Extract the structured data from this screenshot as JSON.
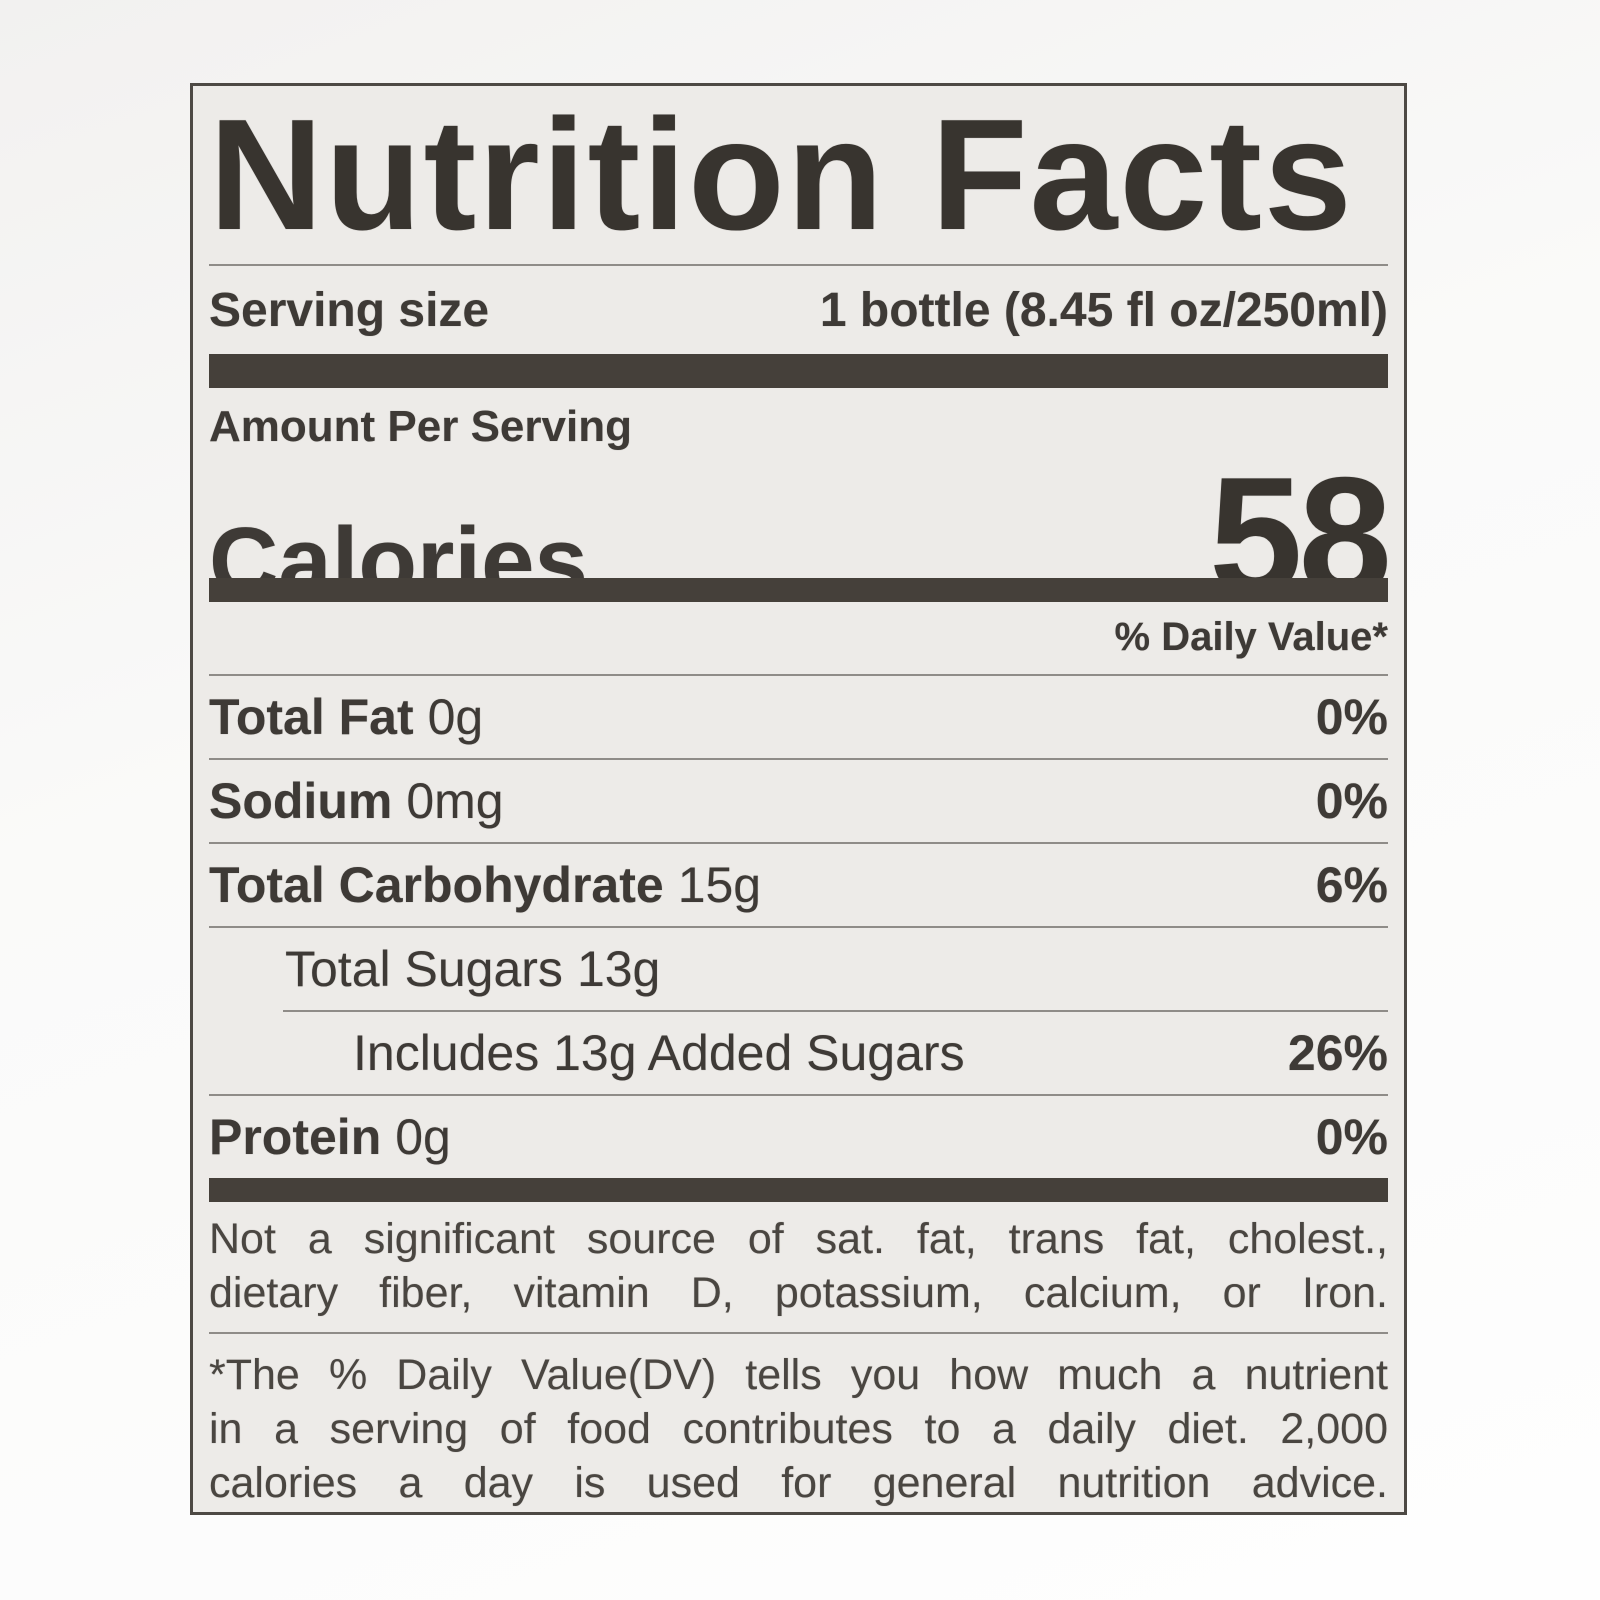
{
  "colors": {
    "label_background": "#edebe8",
    "page_background": "#fafaf9",
    "text": "#3e3a36",
    "thick_bar": "#45403a",
    "hairline": "#8f8c88",
    "border": "#4d4944"
  },
  "label": {
    "title": "Nutrition Facts",
    "serving_size": {
      "label": "Serving size",
      "value": "1 bottle (8.45 fl oz/250ml)"
    },
    "amount_per_serving": "Amount Per Serving",
    "calories": {
      "label": "Calories",
      "value": "58"
    },
    "daily_value_header": "% Daily Value*",
    "nutrients": [
      {
        "name": "Total Fat",
        "amount": "0g",
        "daily_value": "0%"
      },
      {
        "name": "Sodium",
        "amount": "0mg",
        "daily_value": "0%"
      },
      {
        "name": "Total Carbohydrate",
        "amount": "15g",
        "daily_value": "6%"
      },
      {
        "name": "Total Sugars",
        "amount": "13g",
        "daily_value": ""
      },
      {
        "name": "Includes 13g Added Sugars",
        "amount": "",
        "daily_value": "26%"
      },
      {
        "name": "Protein",
        "amount": "0g",
        "daily_value": "0%"
      }
    ],
    "not_significant_note": {
      "lines": [
        "Not a significant source of sat. fat, trans fat, cholest.,",
        "dietary fiber,  vitamin D, potassium, calcium, or Iron."
      ]
    },
    "footnote": {
      "lines": [
        "*The % Daily Value(DV) tells you how much a nutrient",
        "in a serving of food contributes to a daily diet. 2,000",
        "calories a day is used for general nutrition advice."
      ]
    }
  }
}
